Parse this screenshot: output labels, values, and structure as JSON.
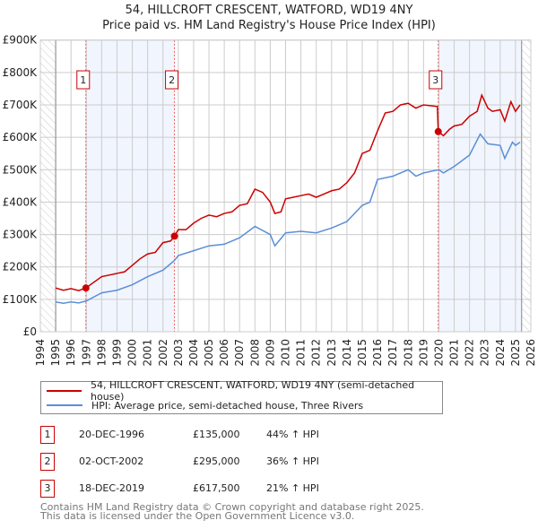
{
  "title_line1": "54, HILLCROFT CRESCENT, WATFORD, WD19 4NY",
  "title_line2": "Price paid vs. HM Land Registry's House Price Index (HPI)",
  "chart_data": {
    "type": "line",
    "xlim": [
      1994,
      2026
    ],
    "ylim": [
      0,
      900000
    ],
    "yticks": [
      0,
      100000,
      200000,
      300000,
      400000,
      500000,
      600000,
      700000,
      800000,
      900000
    ],
    "ytick_labels": [
      "£0",
      "£100K",
      "£200K",
      "£300K",
      "£400K",
      "£500K",
      "£600K",
      "£700K",
      "£800K",
      "£900K"
    ],
    "xticks": [
      "1994",
      "1995",
      "1996",
      "1997",
      "1998",
      "1999",
      "2000",
      "2001",
      "2002",
      "2003",
      "2004",
      "2005",
      "2006",
      "2007",
      "2008",
      "2009",
      "2010",
      "2011",
      "2012",
      "2013",
      "2014",
      "2015",
      "2016",
      "2017",
      "2018",
      "2019",
      "2020",
      "2021",
      "2022",
      "2023",
      "2024",
      "2025",
      "2026"
    ],
    "grid": true,
    "data_start": 1995,
    "data_end": 2025.4,
    "shaded_ranges": [
      [
        1996.97,
        2002.75
      ],
      [
        2019.96,
        2025.4
      ]
    ],
    "series": [
      {
        "name": "54, HILLCROFT CRESCENT, WATFORD, WD19 4NY (semi-detached house)",
        "color": "#cc0000",
        "x": [
          1995,
          1995.5,
          1996,
          1996.5,
          1996.97,
          1998,
          1999,
          1999.5,
          2000,
          2000.5,
          2001,
          2001.5,
          2002,
          2002.5,
          2002.75,
          2003,
          2003.5,
          2004,
          2004.5,
          2005,
          2005.5,
          2006,
          2006.5,
          2007,
          2007.5,
          2008,
          2008.5,
          2009,
          2009.3,
          2009.7,
          2010,
          2010.5,
          2011,
          2011.5,
          2012,
          2012.5,
          2013,
          2013.5,
          2014,
          2014.5,
          2015,
          2015.5,
          2016,
          2016.5,
          2017,
          2017.5,
          2018,
          2018.5,
          2019,
          2019.9,
          2019.96,
          2020.3,
          2020.7,
          2021,
          2021.5,
          2022,
          2022.5,
          2022.8,
          2023.2,
          2023.5,
          2024,
          2024.3,
          2024.7,
          2025,
          2025.3
        ],
        "y": [
          135000,
          128000,
          133000,
          127000,
          135000,
          170000,
          180000,
          185000,
          205000,
          225000,
          240000,
          245000,
          275000,
          280000,
          295000,
          315000,
          315000,
          335000,
          350000,
          360000,
          355000,
          365000,
          370000,
          390000,
          395000,
          440000,
          430000,
          400000,
          365000,
          370000,
          410000,
          415000,
          420000,
          425000,
          415000,
          425000,
          435000,
          440000,
          460000,
          490000,
          550000,
          560000,
          620000,
          675000,
          680000,
          700000,
          705000,
          690000,
          700000,
          695000,
          617500,
          605000,
          625000,
          635000,
          640000,
          665000,
          680000,
          730000,
          690000,
          680000,
          685000,
          650000,
          710000,
          680000,
          700000
        ]
      },
      {
        "name": "HPI: Average price, semi-detached house, Three Rivers",
        "color": "#5b8fd6",
        "x": [
          1995,
          1995.5,
          1996,
          1996.5,
          1997,
          1998,
          1999,
          2000,
          2001,
          2002,
          2002.75,
          2003,
          2004,
          2005,
          2006,
          2007,
          2008,
          2009,
          2009.3,
          2010,
          2011,
          2012,
          2013,
          2014,
          2015,
          2015.5,
          2016,
          2017,
          2018,
          2018.5,
          2019,
          2020,
          2020.3,
          2021,
          2022,
          2022.7,
          2023.2,
          2024,
          2024.3,
          2024.8,
          2025,
          2025.3
        ],
        "y": [
          92000,
          88000,
          92000,
          89000,
          95000,
          120000,
          128000,
          145000,
          170000,
          190000,
          220000,
          235000,
          250000,
          265000,
          270000,
          290000,
          325000,
          300000,
          265000,
          305000,
          310000,
          305000,
          320000,
          340000,
          390000,
          400000,
          470000,
          480000,
          500000,
          480000,
          490000,
          500000,
          490000,
          510000,
          545000,
          610000,
          580000,
          575000,
          535000,
          585000,
          575000,
          585000
        ]
      }
    ],
    "sales": [
      {
        "label": "1",
        "x": 1996.97,
        "y": 135000
      },
      {
        "label": "2",
        "x": 2002.75,
        "y": 295000
      },
      {
        "label": "3",
        "x": 2019.96,
        "y": 617500
      }
    ]
  },
  "legend": {
    "property": "54, HILLCROFT CRESCENT, WATFORD, WD19 4NY (semi-detached house)",
    "hpi": "HPI: Average price, semi-detached house, Three Rivers"
  },
  "transactions": [
    {
      "num": "1",
      "date": "20-DEC-1996",
      "price": "£135,000",
      "hpi": "44% ↑ HPI"
    },
    {
      "num": "2",
      "date": "02-OCT-2002",
      "price": "£295,000",
      "hpi": "36% ↑ HPI"
    },
    {
      "num": "3",
      "date": "18-DEC-2019",
      "price": "£617,500",
      "hpi": "21% ↑ HPI"
    }
  ],
  "footer": {
    "line1": "Contains HM Land Registry data © Crown copyright and database right 2025.",
    "line2": "This data is licensed under the Open Government Licence v3.0."
  }
}
